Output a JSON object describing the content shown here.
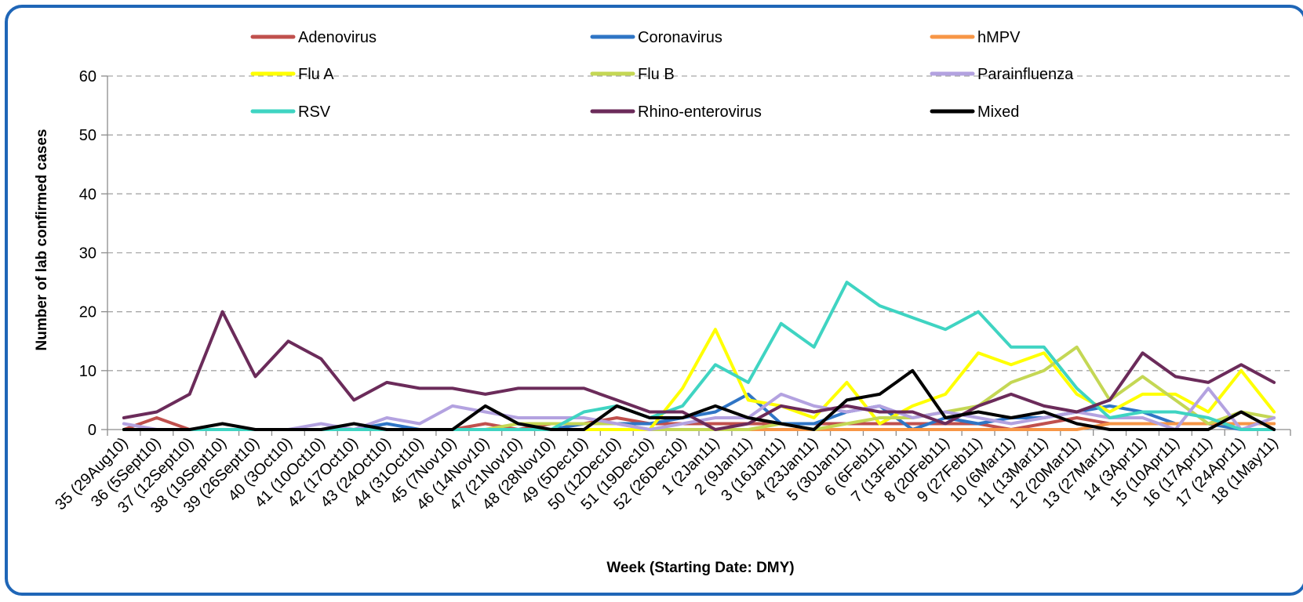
{
  "chart_data": {
    "type": "line",
    "title": "",
    "xlabel": "Week (Starting Date: DMY)",
    "ylabel": "Number of lab confirmed cases",
    "ylim": [
      0,
      60
    ],
    "yticks": [
      "0",
      "10",
      "20",
      "30",
      "40",
      "50",
      "60"
    ],
    "grid": "horizontal dashed",
    "legend_position": "top",
    "categories": [
      "35 (29Aug10)",
      "36 (5Sept10)",
      "37 (12Sept10)",
      "38 (19Sept10)",
      "39 (26Sept10)",
      "40 (3Oct10)",
      "41 (10Oct10)",
      "42 (17Oct10)",
      "43 (24Oct10)",
      "44 (31Oct10)",
      "45 (7Nov10)",
      "46 (14Nov10)",
      "47 (21Nov10)",
      "48 (28Nov10)",
      "49 (5Dec10)",
      "50 (12Dec10)",
      "51 (19Dec10)",
      "52 (26Dec10)",
      "1 (2Jan11)",
      "2 (9Jan11)",
      "3 (16Jan11)",
      "4 (23Jan11)",
      "5 (30Jan11)",
      "6 (6Feb11)",
      "7 (13Feb11)",
      "8 (20Feb11)",
      "9 (27Feb11)",
      "10 (6Mar11)",
      "11 (13Mar11)",
      "12 (20Mar11)",
      "13 (27Mar11)",
      "14 (3Apr11)",
      "15 (10Apr11)",
      "16 (17Apr11)",
      "17 (24Apr11)",
      "18 (1May11)"
    ],
    "series": [
      {
        "name": "Adenovirus",
        "color": "#c0504d",
        "values": [
          0,
          2,
          0,
          0,
          0,
          0,
          0,
          0,
          0,
          0,
          0,
          1,
          0,
          1,
          1,
          2,
          1,
          1,
          1,
          1,
          1,
          1,
          1,
          1,
          1,
          1,
          1,
          0,
          1,
          2,
          1,
          1,
          1,
          1,
          1,
          1
        ]
      },
      {
        "name": "Coronavirus",
        "color": "#2f75c5",
        "values": [
          0,
          0,
          0,
          0,
          0,
          0,
          0,
          0,
          1,
          0,
          0,
          0,
          0,
          0,
          1,
          1,
          1,
          2,
          3,
          6,
          1,
          1,
          3,
          4,
          0,
          2,
          1,
          2,
          2,
          3,
          4,
          3,
          1,
          1,
          0,
          0
        ]
      },
      {
        "name": "hMPV",
        "color": "#f79646",
        "values": [
          0,
          0,
          0,
          0,
          0,
          0,
          0,
          0,
          0,
          0,
          0,
          0,
          0,
          0,
          0,
          0,
          0,
          0,
          0,
          0,
          0,
          0,
          0,
          0,
          0,
          0,
          0,
          0,
          0,
          0,
          1,
          1,
          1,
          1,
          1,
          1
        ]
      },
      {
        "name": "Flu A",
        "color": "#ffff00",
        "values": [
          0,
          0,
          0,
          0,
          0,
          0,
          0,
          0,
          0,
          0,
          0,
          0,
          0,
          0,
          0,
          0,
          0,
          7,
          17,
          5,
          4,
          2,
          8,
          1,
          4,
          6,
          13,
          11,
          13,
          6,
          3,
          6,
          6,
          3,
          10,
          3
        ]
      },
      {
        "name": "Flu B",
        "color": "#c4d754",
        "values": [
          0,
          0,
          0,
          0,
          0,
          0,
          0,
          0,
          0,
          0,
          0,
          0,
          1,
          1,
          1,
          1,
          0,
          0,
          0,
          0,
          1,
          0,
          1,
          2,
          2,
          3,
          4,
          8,
          10,
          14,
          5,
          9,
          5,
          1,
          3,
          2
        ]
      },
      {
        "name": "Parainfluenza",
        "color": "#b3a2e0",
        "values": [
          1,
          0,
          0,
          0,
          0,
          0,
          1,
          0,
          2,
          1,
          4,
          3,
          2,
          2,
          2,
          1,
          0,
          1,
          2,
          2,
          6,
          4,
          3,
          4,
          2,
          3,
          2,
          1,
          2,
          3,
          2,
          2,
          0,
          7,
          0,
          2
        ]
      },
      {
        "name": "RSV",
        "color": "#3fd4c2",
        "values": [
          0,
          0,
          0,
          0,
          0,
          0,
          0,
          0,
          0,
          0,
          0,
          0,
          0,
          0,
          3,
          4,
          2,
          4,
          11,
          8,
          18,
          14,
          25,
          21,
          19,
          17,
          20,
          14,
          14,
          7,
          2,
          3,
          3,
          2,
          0,
          0
        ]
      },
      {
        "name": "Rhino-enterovirus",
        "color": "#6b2b5a",
        "values": [
          2,
          3,
          6,
          20,
          9,
          15,
          12,
          5,
          8,
          7,
          7,
          6,
          7,
          7,
          7,
          5,
          3,
          3,
          0,
          1,
          4,
          3,
          4,
          3,
          3,
          1,
          4,
          6,
          4,
          3,
          5,
          13,
          9,
          8,
          11,
          8
        ]
      },
      {
        "name": "Mixed",
        "color": "#000000",
        "values": [
          0,
          0,
          0,
          1,
          0,
          0,
          0,
          1,
          0,
          0,
          0,
          4,
          1,
          0,
          0,
          4,
          2,
          2,
          4,
          2,
          1,
          0,
          5,
          6,
          10,
          2,
          3,
          2,
          3,
          1,
          0,
          0,
          0,
          0,
          3,
          0
        ]
      }
    ]
  }
}
